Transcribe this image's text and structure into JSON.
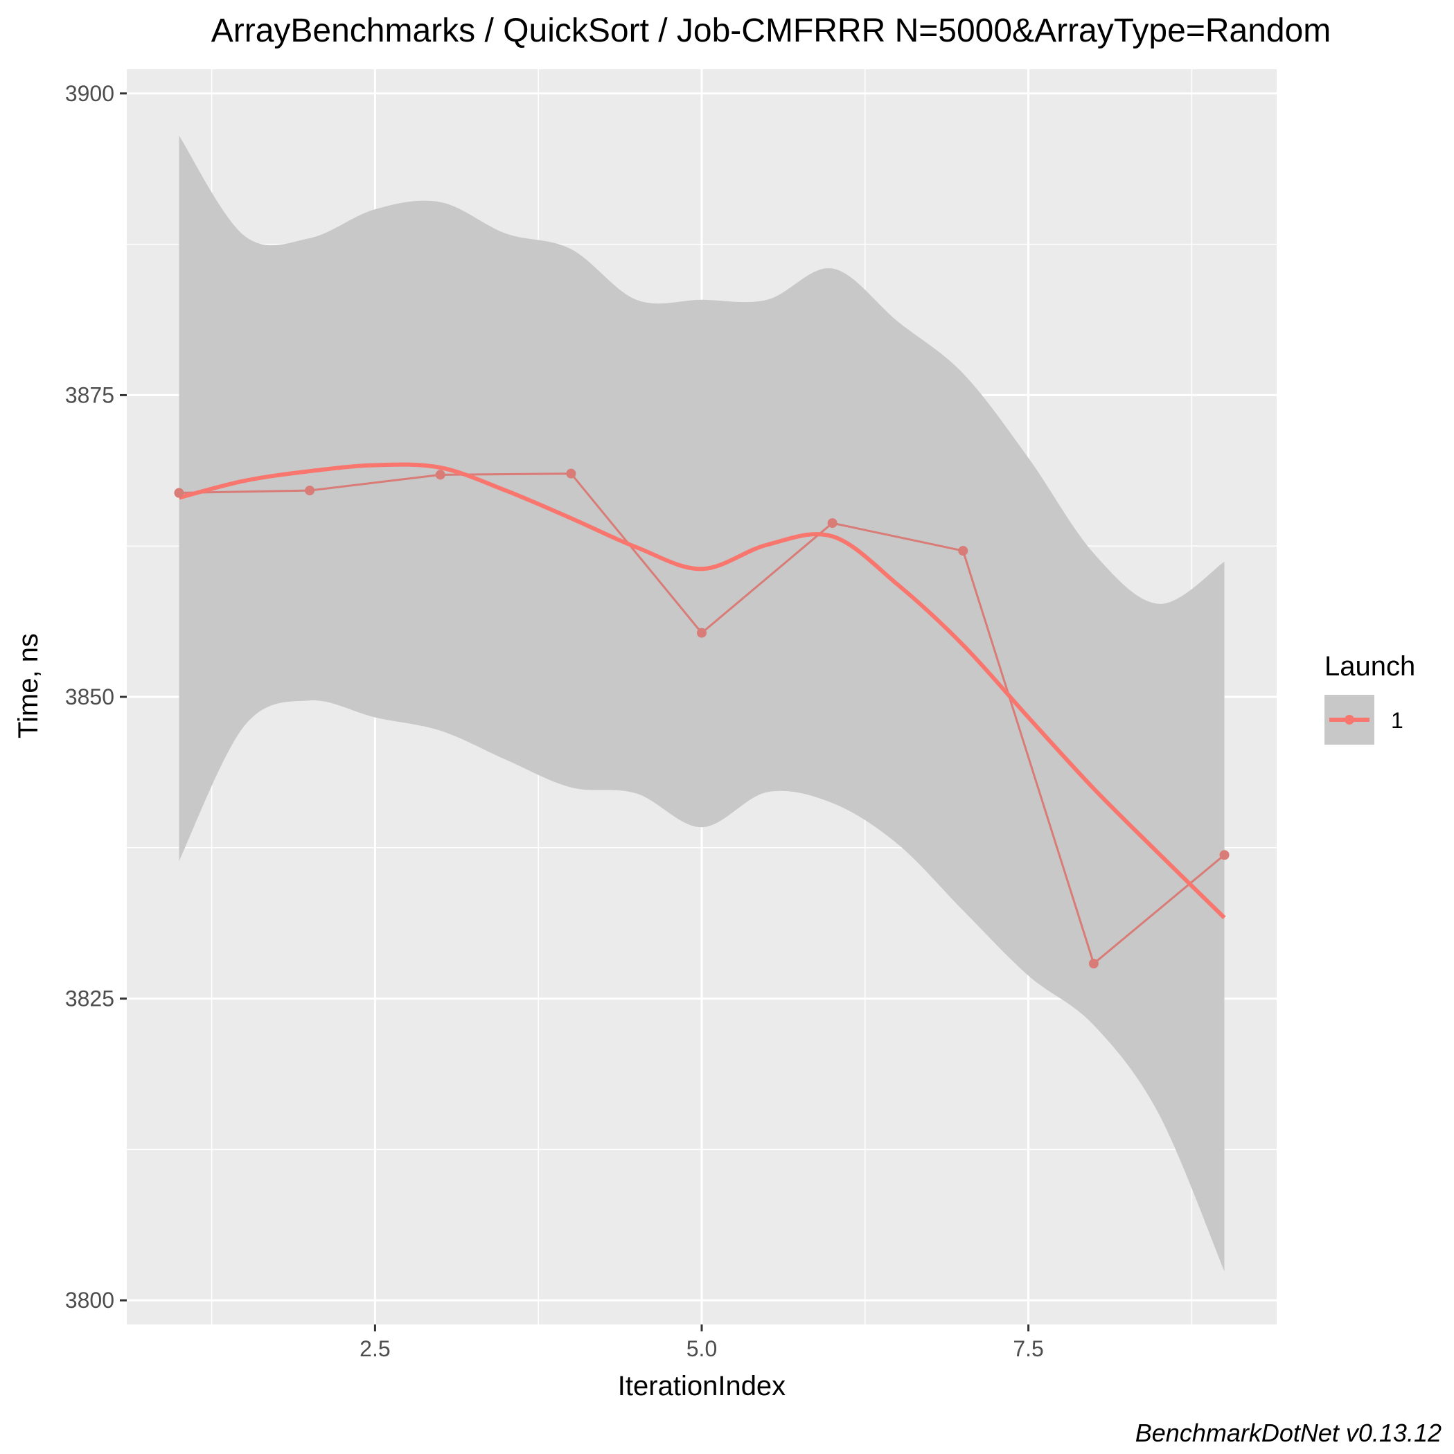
{
  "chart_data": {
    "type": "line",
    "title": "ArrayBenchmarks / QuickSort / Job-CMFRRR N=5000&ArrayType=Random",
    "xlabel": "IterationIndex",
    "ylabel": "Time, ns",
    "caption": "BenchmarkDotNet v0.13.12",
    "xlim": [
      0.6,
      9.4
    ],
    "ylim": [
      3798,
      3902
    ],
    "x_ticks": [
      2.5,
      5.0,
      7.5
    ],
    "x_tick_labels": [
      "2.5",
      "5.0",
      "7.5"
    ],
    "x_minor_ticks": [
      1.25,
      3.75,
      6.25,
      8.75
    ],
    "y_ticks": [
      3800,
      3825,
      3850,
      3875,
      3900
    ],
    "y_tick_labels": [
      "3800",
      "3825",
      "3850",
      "3875",
      "3900"
    ],
    "y_minor_ticks": [
      3812.5,
      3837.5,
      3862.5,
      3887.5
    ],
    "grid": true,
    "legend": {
      "title": "Launch",
      "position": "right",
      "entries": [
        "1"
      ]
    },
    "colors": {
      "panel": "#ebebeb",
      "grid": "#ffffff",
      "series_line": "#d97b76",
      "series_point": "#d97b76",
      "smooth": "#f8766d",
      "ribbon": "#c8c8c8"
    },
    "series": [
      {
        "name": "1",
        "x": [
          1,
          2,
          3,
          4,
          5,
          6,
          7,
          8,
          9
        ],
        "y": [
          3866.9,
          3867.1,
          3868.4,
          3868.5,
          3855.3,
          3864.4,
          3862.1,
          3827.9,
          3836.9
        ]
      }
    ],
    "smooth": {
      "x": [
        1.0,
        1.5,
        2.0,
        2.5,
        3.0,
        3.5,
        4.0,
        4.5,
        5.0,
        5.5,
        6.0,
        6.5,
        7.0,
        7.5,
        8.0,
        8.5,
        9.0
      ],
      "y": [
        3866.5,
        3867.9,
        3868.7,
        3869.2,
        3869.0,
        3867.1,
        3864.8,
        3862.4,
        3860.6,
        3862.6,
        3863.3,
        3859.3,
        3854.3,
        3848.3,
        3842.4,
        3837.0,
        3831.7
      ],
      "ymin": [
        3836.4,
        3847.6,
        3849.7,
        3848.3,
        3847.2,
        3844.8,
        3842.5,
        3842.0,
        3839.2,
        3842.1,
        3841.2,
        3837.8,
        3832.3,
        3826.9,
        3822.8,
        3815.4,
        3802.4
      ],
      "ymax": [
        3896.5,
        3888.2,
        3888.0,
        3890.4,
        3891.0,
        3888.4,
        3887.1,
        3882.9,
        3882.9,
        3882.9,
        3885.5,
        3881.1,
        3876.8,
        3869.8,
        3861.9,
        3857.7,
        3861.2
      ]
    }
  }
}
